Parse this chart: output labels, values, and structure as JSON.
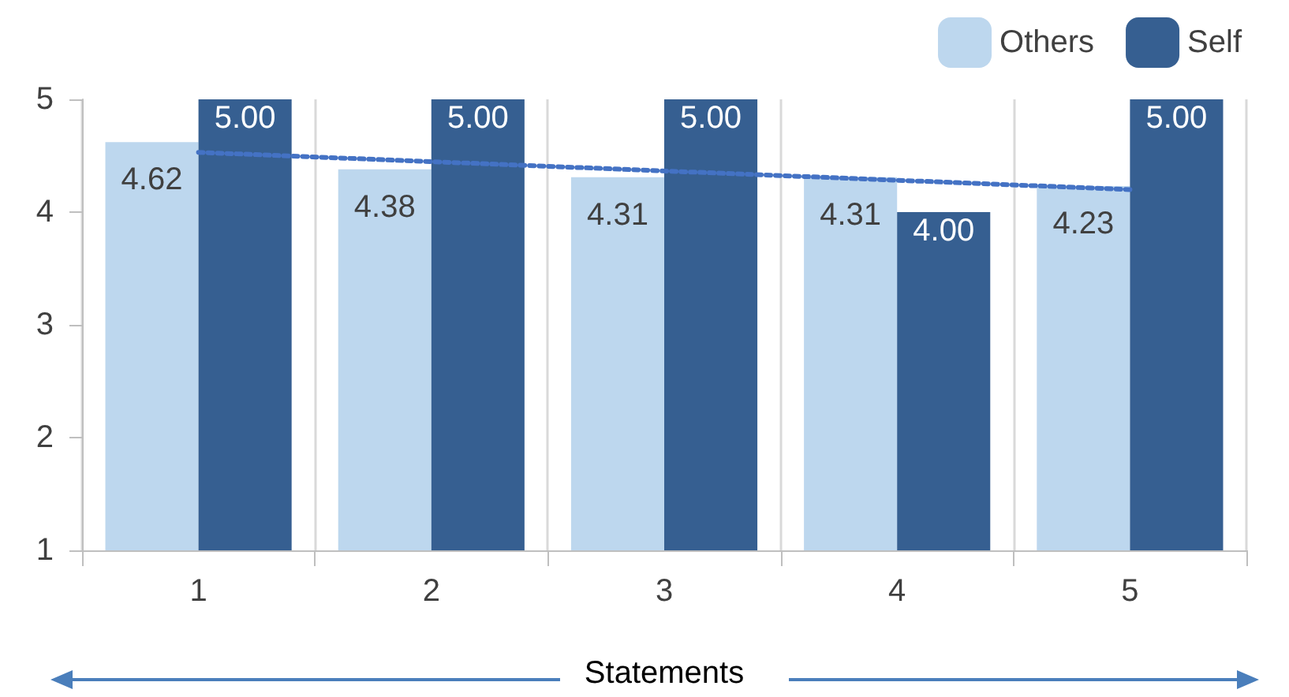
{
  "chart_data": {
    "type": "bar",
    "xlabel": "Statements",
    "categories": [
      "1",
      "2",
      "3",
      "4",
      "5"
    ],
    "series": [
      {
        "name": "Others",
        "color": "#bdd7ee",
        "values": [
          4.62,
          4.38,
          4.31,
          4.31,
          4.23
        ],
        "value_labels": [
          "4.62",
          "4.38",
          "4.31",
          "4.31",
          "4.23"
        ]
      },
      {
        "name": "Self",
        "color": "#365f91",
        "values": [
          5.0,
          5.0,
          5.0,
          4.0,
          5.0
        ],
        "value_labels": [
          "5.00",
          "5.00",
          "5.00",
          "4.00",
          "5.00"
        ]
      },
      {
        "type": "line",
        "color": "#4472c4",
        "line_style": "dotted",
        "marker": "none",
        "x": [
          "1",
          "5"
        ],
        "values": [
          4.53,
          4.2
        ]
      }
    ],
    "ylim": [
      1,
      5
    ],
    "yticks": [
      1,
      2,
      3,
      4,
      5
    ],
    "grid": "x",
    "legend": "top right"
  }
}
